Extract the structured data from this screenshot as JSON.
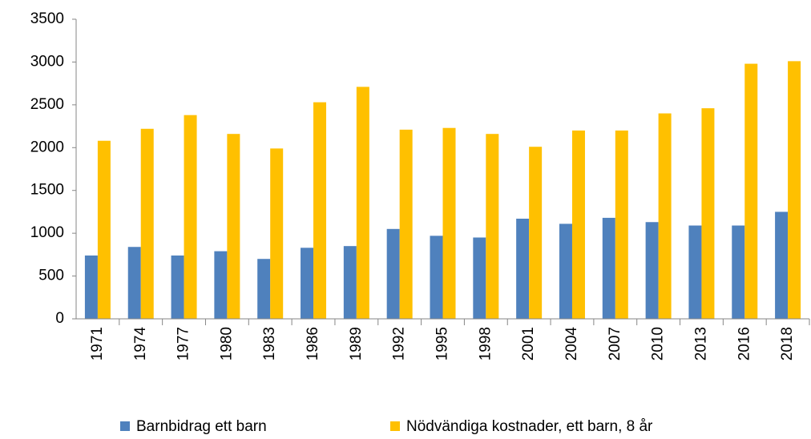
{
  "chart_data": {
    "type": "bar",
    "categories": [
      "1971",
      "1974",
      "1977",
      "1980",
      "1983",
      "1986",
      "1989",
      "1992",
      "1995",
      "1998",
      "2001",
      "2004",
      "2007",
      "2010",
      "2013",
      "2016",
      "2018"
    ],
    "series": [
      {
        "name": "Barnbidrag ett barn",
        "color": "#4f81bd",
        "values": [
          740,
          840,
          740,
          790,
          700,
          830,
          850,
          1050,
          970,
          950,
          1170,
          1110,
          1180,
          1130,
          1090,
          1090,
          1250
        ]
      },
      {
        "name": "Nödvändiga kostnader, ett barn, 8 år",
        "color": "#ffc000",
        "values": [
          2080,
          2220,
          2380,
          2160,
          1990,
          2530,
          2710,
          2210,
          2230,
          2160,
          2010,
          2200,
          2200,
          2400,
          2460,
          2980,
          3010
        ]
      }
    ],
    "ylim": [
      0,
      3500
    ],
    "yticks": [
      0,
      500,
      1000,
      1500,
      2000,
      2500,
      3000,
      3500
    ],
    "grid": false,
    "legend": "bottom"
  }
}
